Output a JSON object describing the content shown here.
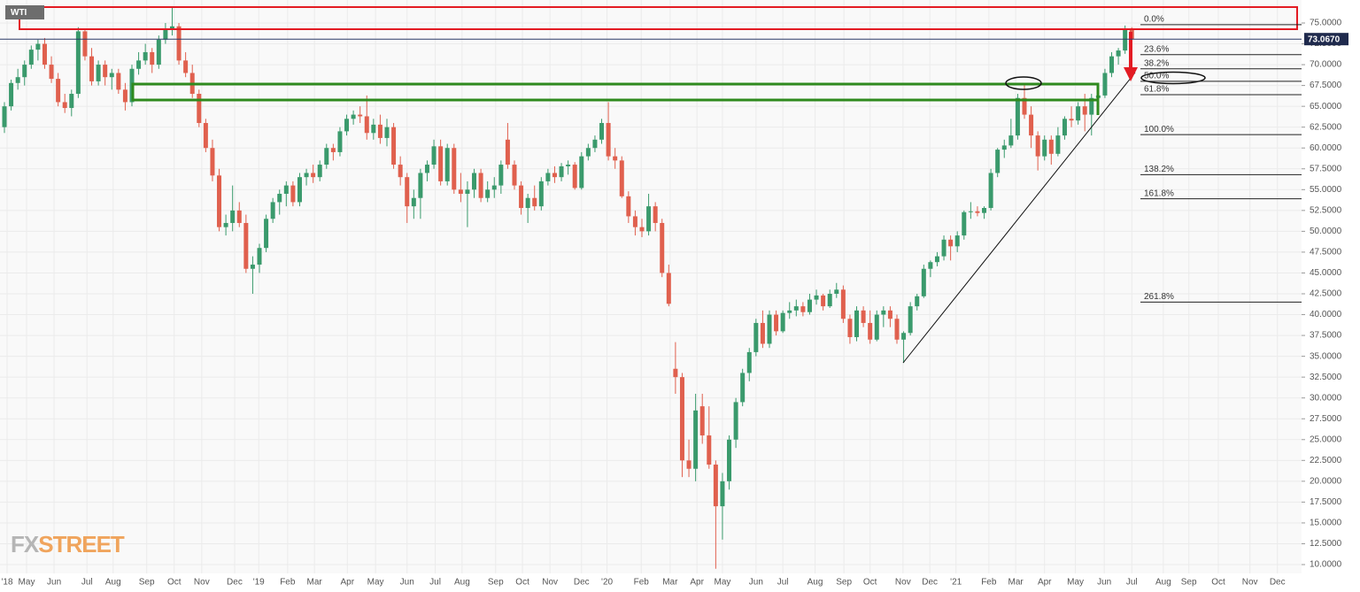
{
  "chart_data": {
    "type": "candlestick",
    "title": "WTI",
    "watermark": [
      "FX",
      "STREET"
    ],
    "up_color": "#3a9a6c",
    "down_color": "#e0604e",
    "grid": true,
    "xlim": [
      -0.66,
      193.3
    ],
    "ylim": [
      8.94,
      77.76
    ],
    "xticks": [
      {
        "value": 0.4,
        "label": "'18"
      },
      {
        "value": 3.3,
        "label": "May"
      },
      {
        "value": 7.4,
        "label": "Jun"
      },
      {
        "value": 12.3,
        "label": "Jul"
      },
      {
        "value": 16.2,
        "label": "Aug"
      },
      {
        "value": 21.2,
        "label": "Sep"
      },
      {
        "value": 25.3,
        "label": "Oct"
      },
      {
        "value": 29.4,
        "label": "Nov"
      },
      {
        "value": 34.3,
        "label": "Dec"
      },
      {
        "value": 37.9,
        "label": "'19"
      },
      {
        "value": 42.2,
        "label": "Feb"
      },
      {
        "value": 46.2,
        "label": "Mar"
      },
      {
        "value": 51.1,
        "label": "Apr"
      },
      {
        "value": 55.3,
        "label": "May"
      },
      {
        "value": 60.0,
        "label": "Jun"
      },
      {
        "value": 64.2,
        "label": "Jul"
      },
      {
        "value": 68.2,
        "label": "Aug"
      },
      {
        "value": 73.2,
        "label": "Sep"
      },
      {
        "value": 77.2,
        "label": "Oct"
      },
      {
        "value": 81.3,
        "label": "Nov"
      },
      {
        "value": 86.0,
        "label": "Dec"
      },
      {
        "value": 89.8,
        "label": "'20"
      },
      {
        "value": 94.9,
        "label": "Feb"
      },
      {
        "value": 99.2,
        "label": "Mar"
      },
      {
        "value": 103.2,
        "label": "Apr"
      },
      {
        "value": 107.0,
        "label": "May"
      },
      {
        "value": 112.0,
        "label": "Jun"
      },
      {
        "value": 116.0,
        "label": "Jul"
      },
      {
        "value": 120.8,
        "label": "Aug"
      },
      {
        "value": 125.1,
        "label": "Sep"
      },
      {
        "value": 129.0,
        "label": "Oct"
      },
      {
        "value": 133.9,
        "label": "Nov"
      },
      {
        "value": 137.9,
        "label": "Dec"
      },
      {
        "value": 141.8,
        "label": "'21"
      },
      {
        "value": 146.7,
        "label": "Feb"
      },
      {
        "value": 150.7,
        "label": "Mar"
      },
      {
        "value": 155.0,
        "label": "Apr"
      },
      {
        "value": 159.6,
        "label": "May"
      },
      {
        "value": 163.9,
        "label": "Jun"
      },
      {
        "value": 168.0,
        "label": "Jul"
      },
      {
        "value": 172.7,
        "label": "Aug"
      },
      {
        "value": 176.5,
        "label": "Sep"
      },
      {
        "value": 180.9,
        "label": "Oct"
      },
      {
        "value": 185.6,
        "label": "Nov"
      },
      {
        "value": 189.7,
        "label": "Dec"
      }
    ],
    "yticks": [
      {
        "value": 10,
        "label": "10.0000"
      },
      {
        "value": 12.5,
        "label": "12.5000"
      },
      {
        "value": 15,
        "label": "15.0000"
      },
      {
        "value": 17.5,
        "label": "17.5000"
      },
      {
        "value": 20,
        "label": "20.0000"
      },
      {
        "value": 22.5,
        "label": "22.5000"
      },
      {
        "value": 25,
        "label": "25.0000"
      },
      {
        "value": 27.5,
        "label": "27.5000"
      },
      {
        "value": 30,
        "label": "30.0000"
      },
      {
        "value": 32.5,
        "label": "32.5000"
      },
      {
        "value": 35,
        "label": "35.0000"
      },
      {
        "value": 37.5,
        "label": "37.5000"
      },
      {
        "value": 40,
        "label": "40.0000"
      },
      {
        "value": 42.5,
        "label": "42.5000"
      },
      {
        "value": 45,
        "label": "45.0000"
      },
      {
        "value": 47.5,
        "label": "47.5000"
      },
      {
        "value": 50,
        "label": "50.0000"
      },
      {
        "value": 52.5,
        "label": "52.5000"
      },
      {
        "value": 55,
        "label": "55.0000"
      },
      {
        "value": 57.5,
        "label": "57.5000"
      },
      {
        "value": 60,
        "label": "60.0000"
      },
      {
        "value": 62.5,
        "label": "62.5000"
      },
      {
        "value": 65,
        "label": "65.0000"
      },
      {
        "value": 67.5,
        "label": "67.5000"
      },
      {
        "value": 70,
        "label": "70.0000"
      },
      {
        "value": 72.5,
        "label": "72.5000"
      },
      {
        "value": 75,
        "label": "75.0000"
      }
    ],
    "last_price": {
      "value": 73.067,
      "label": "73.0670"
    },
    "fib_levels": [
      {
        "value": 74.8,
        "label": "0.0%"
      },
      {
        "value": 71.2,
        "label": "23.6%"
      },
      {
        "value": 69.5,
        "label": "38.2%"
      },
      {
        "value": 68.0,
        "label": "50.0%"
      },
      {
        "value": 66.4,
        "label": "61.8%"
      },
      {
        "value": 61.6,
        "label": "100.0%"
      },
      {
        "value": 56.8,
        "label": "138.2%"
      },
      {
        "value": 53.9,
        "label": "161.8%"
      },
      {
        "value": 41.5,
        "label": "261.8%"
      }
    ],
    "ohlc": [
      [
        62.5,
        65.5,
        61.8,
        65
      ],
      [
        65,
        68.2,
        64.5,
        67.8
      ],
      [
        67.8,
        69.5,
        67,
        68.5
      ],
      [
        68.5,
        70.5,
        67.5,
        70
      ],
      [
        70,
        72.3,
        69.5,
        71.8
      ],
      [
        71.8,
        73,
        70.5,
        72.5
      ],
      [
        72.5,
        73.2,
        69.5,
        70
      ],
      [
        70,
        71,
        67.8,
        68.3
      ],
      [
        68.3,
        69,
        65,
        65.5
      ],
      [
        65.5,
        66.5,
        64.2,
        64.8
      ],
      [
        64.8,
        67,
        63.8,
        66.5
      ],
      [
        66.5,
        74.5,
        66,
        74
      ],
      [
        74,
        74.3,
        70.5,
        71
      ],
      [
        71,
        72,
        67.5,
        68
      ],
      [
        68,
        70.5,
        67.5,
        70
      ],
      [
        70,
        70.5,
        67.5,
        68.5
      ],
      [
        68.5,
        69.5,
        67,
        69
      ],
      [
        69,
        69.5,
        66.5,
        67
      ],
      [
        67,
        67.8,
        64.5,
        65.5
      ],
      [
        65.5,
        70,
        65,
        69.5
      ],
      [
        69.5,
        71.5,
        68.8,
        70.5
      ],
      [
        70.5,
        72.5,
        70,
        71.5
      ],
      [
        71.5,
        72,
        69,
        70
      ],
      [
        70,
        73.5,
        69.5,
        73
      ],
      [
        73,
        75,
        72.5,
        74.3
      ],
      [
        74.3,
        76.9,
        73.5,
        74.6
      ],
      [
        74.6,
        75,
        70,
        70.5
      ],
      [
        70.5,
        71.5,
        68.5,
        69
      ],
      [
        69,
        70,
        66,
        66.5
      ],
      [
        66.5,
        67,
        62.5,
        63
      ],
      [
        63,
        63.5,
        59.5,
        60
      ],
      [
        60,
        61,
        56,
        56.7
      ],
      [
        56.7,
        57.5,
        50,
        50.5
      ],
      [
        50.5,
        52,
        49.5,
        51
      ],
      [
        51,
        55.5,
        50,
        52.5
      ],
      [
        52.5,
        53.5,
        50.5,
        51
      ],
      [
        51,
        52,
        45,
        45.5
      ],
      [
        45.5,
        47,
        42.5,
        46
      ],
      [
        46,
        48.5,
        45,
        48
      ],
      [
        48,
        52,
        47.5,
        51.5
      ],
      [
        51.5,
        54,
        51,
        53.5
      ],
      [
        53.5,
        55,
        52,
        54.5
      ],
      [
        54.5,
        56,
        53,
        55.5
      ],
      [
        55.5,
        56,
        53,
        53.5
      ],
      [
        53.5,
        57,
        53,
        56.5
      ],
      [
        56.5,
        57.5,
        55.5,
        57
      ],
      [
        57,
        58,
        55.8,
        56.5
      ],
      [
        56.5,
        58.5,
        56,
        58
      ],
      [
        58,
        60.5,
        57.5,
        60
      ],
      [
        60,
        60.5,
        58.5,
        59.5
      ],
      [
        59.5,
        62.5,
        59,
        62
      ],
      [
        62,
        64,
        61.5,
        63.5
      ],
      [
        63.5,
        64.5,
        62.8,
        64
      ],
      [
        64,
        65,
        63,
        63.8
      ],
      [
        63.8,
        66.3,
        61,
        61.8
      ],
      [
        61.8,
        63.5,
        61,
        62.8
      ],
      [
        62.8,
        64,
        60.5,
        61.2
      ],
      [
        61.2,
        63.5,
        60.2,
        62.5
      ],
      [
        62.5,
        63,
        57.5,
        58
      ],
      [
        58,
        59,
        55.5,
        56.5
      ],
      [
        56.5,
        57,
        51,
        53
      ],
      [
        53,
        55,
        51.5,
        54
      ],
      [
        54,
        57.5,
        51.5,
        57
      ],
      [
        57,
        58.5,
        56,
        58
      ],
      [
        58,
        61,
        57.5,
        60.2
      ],
      [
        60.2,
        61,
        55.5,
        56
      ],
      [
        56,
        60.5,
        55.5,
        60
      ],
      [
        60,
        60.5,
        54.5,
        55
      ],
      [
        55,
        57,
        53.5,
        54.5
      ],
      [
        54.5,
        56,
        50.5,
        55
      ],
      [
        55,
        57.5,
        54,
        57
      ],
      [
        57,
        57.5,
        53.5,
        54
      ],
      [
        54,
        56,
        53.5,
        55
      ],
      [
        55,
        56.5,
        54,
        55.5
      ],
      [
        55.5,
        58.5,
        54.5,
        58
      ],
      [
        61,
        63,
        57.5,
        58
      ],
      [
        58,
        58.5,
        55,
        55.5
      ],
      [
        55.5,
        56,
        52,
        52.8
      ],
      [
        52.8,
        54.5,
        51,
        54
      ],
      [
        54,
        55.5,
        52.5,
        53
      ],
      [
        53,
        56.5,
        52.5,
        56
      ],
      [
        56,
        57.5,
        55.5,
        57
      ],
      [
        57,
        57.8,
        55.8,
        56.5
      ],
      [
        56.5,
        58.2,
        56,
        57.8
      ],
      [
        57.8,
        58.5,
        56.8,
        58
      ],
      [
        58,
        58.3,
        55,
        55.2
      ],
      [
        55.2,
        59.5,
        55,
        59
      ],
      [
        59,
        60.5,
        58.5,
        60
      ],
      [
        60,
        61.5,
        59.5,
        61
      ],
      [
        61,
        63.5,
        60.5,
        63
      ],
      [
        63,
        65.5,
        58.5,
        59
      ],
      [
        59,
        60,
        57.5,
        58.5
      ],
      [
        58.5,
        59,
        54,
        54.2
      ],
      [
        54.2,
        54.8,
        51,
        51.8
      ],
      [
        51.8,
        52.5,
        49.5,
        50.5
      ],
      [
        50.5,
        51.5,
        49.3,
        50
      ],
      [
        50,
        54.5,
        49.5,
        53
      ],
      [
        53,
        53.5,
        50,
        51
      ],
      [
        51,
        51.5,
        44.5,
        45
      ],
      [
        45,
        46,
        41,
        41.3
      ],
      [
        33.5,
        36.7,
        30.5,
        32.5
      ],
      [
        32.5,
        33,
        20.5,
        22.5
      ],
      [
        22.5,
        25,
        20.5,
        21.5
      ],
      [
        21.5,
        30.5,
        20,
        28.5
      ],
      [
        29,
        30.5,
        24.5,
        25.5
      ],
      [
        25.5,
        29,
        21.5,
        22
      ],
      [
        22,
        22.5,
        9.5,
        17
      ],
      [
        17,
        21,
        13,
        20
      ],
      [
        20,
        25.5,
        19,
        25
      ],
      [
        25,
        30,
        24,
        29.5
      ],
      [
        29.5,
        33.5,
        29,
        33
      ],
      [
        33,
        36,
        32,
        35.5
      ],
      [
        35.5,
        39.5,
        35,
        39
      ],
      [
        39,
        40.5,
        36,
        36.5
      ],
      [
        36.5,
        40.5,
        36,
        40
      ],
      [
        40,
        40.5,
        37.5,
        38
      ],
      [
        38,
        40.5,
        37.8,
        40.2
      ],
      [
        40.2,
        41.5,
        39.5,
        40.5
      ],
      [
        40.5,
        41.8,
        39.8,
        41
      ],
      [
        41,
        41.5,
        39.8,
        40.3
      ],
      [
        40.3,
        42.5,
        40,
        41.8
      ],
      [
        41.8,
        43,
        41.2,
        42.3
      ],
      [
        42.3,
        42.5,
        40.5,
        41
      ],
      [
        41,
        43,
        40.8,
        42.5
      ],
      [
        42.5,
        43.8,
        42,
        43
      ],
      [
        43,
        43.5,
        39,
        39.5
      ],
      [
        39.5,
        40,
        36.5,
        37.3
      ],
      [
        37.3,
        41,
        36.8,
        40.5
      ],
      [
        40.5,
        41,
        38.5,
        39
      ],
      [
        39,
        40.5,
        36.5,
        37
      ],
      [
        37,
        40.5,
        36.8,
        40
      ],
      [
        40,
        41,
        38.5,
        40.5
      ],
      [
        40.5,
        41,
        38.5,
        39.5
      ],
      [
        39.5,
        40,
        36.5,
        37
      ],
      [
        37,
        38,
        34.2,
        37.8
      ],
      [
        37.8,
        41.5,
        37.5,
        41
      ],
      [
        41,
        42.5,
        40.5,
        42.2
      ],
      [
        42.2,
        46,
        42,
        45.5
      ],
      [
        45.5,
        46.5,
        44.5,
        46.3
      ],
      [
        46.3,
        47.5,
        45.8,
        47
      ],
      [
        47,
        49.5,
        46.5,
        49
      ],
      [
        49,
        49.5,
        46.5,
        48.2
      ],
      [
        48.2,
        50,
        47.5,
        49.5
      ],
      [
        49.5,
        52.5,
        49,
        52.3
      ],
      [
        52.3,
        53.5,
        51.5,
        52.4
      ],
      [
        52.4,
        53,
        51.8,
        52.2
      ],
      [
        52.2,
        53,
        51.5,
        52.8
      ],
      [
        52.8,
        57.5,
        52.5,
        57
      ],
      [
        57,
        60,
        56.5,
        59.8
      ],
      [
        59.8,
        61,
        58.8,
        60.3
      ],
      [
        60.3,
        63.5,
        60,
        61.5
      ],
      [
        61.5,
        66.5,
        61,
        66
      ],
      [
        66,
        67.8,
        63.5,
        64
      ],
      [
        64,
        65,
        60,
        61.5
      ],
      [
        61.5,
        62,
        57.3,
        59
      ],
      [
        59,
        61.5,
        58.5,
        61
      ],
      [
        61,
        61.5,
        58,
        59.3
      ],
      [
        59.3,
        62.5,
        59,
        61.5
      ],
      [
        61.5,
        63.8,
        61,
        63.5
      ],
      [
        63.5,
        65,
        62.5,
        63.3
      ],
      [
        63.3,
        65.5,
        62.8,
        65
      ],
      [
        65,
        66.5,
        62,
        64
      ],
      [
        64,
        66.5,
        61.5,
        66
      ],
      [
        66,
        67,
        64,
        66.3
      ],
      [
        66.3,
        69.5,
        66,
        69
      ],
      [
        69,
        71.5,
        68.5,
        71
      ],
      [
        71,
        72,
        70,
        71.7
      ],
      [
        71.7,
        74.7,
        71.3,
        74.2
      ],
      [
        74.2,
        74.5,
        72.5,
        73.067
      ]
    ]
  }
}
